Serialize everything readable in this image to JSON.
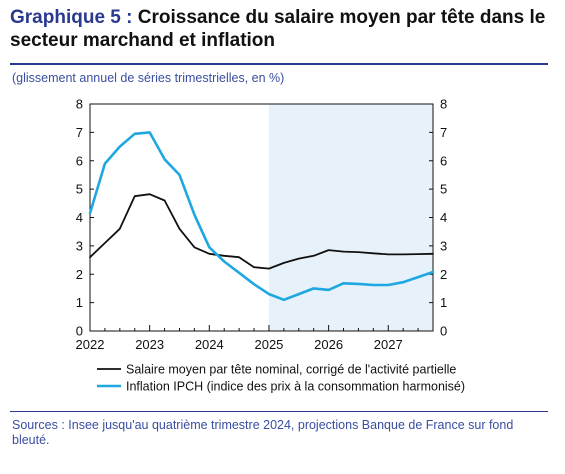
{
  "header": {
    "label": "Graphique 5 :",
    "title": "Croissance du salaire moyen par tête dans le secteur marchand et inflation",
    "subtitle": "(glissement annuel de séries trimestrielles, en %)"
  },
  "footer": {
    "sources": "Sources : Insee jusqu'au quatrième trimestre 2024, projections Banque de France sur fond bleuté."
  },
  "colors": {
    "title_accent": "#2a3990",
    "series_wage": "#111111",
    "series_inflation": "#1ea7e0",
    "projection_band": "#e6f1f9"
  },
  "chart_data": {
    "type": "line",
    "x_ticks": [
      "2022",
      "2023",
      "2024",
      "2025",
      "2026",
      "2027"
    ],
    "x_range": [
      "2022Q1",
      "2027Q4"
    ],
    "ylim": [
      0,
      8
    ],
    "y_ticks": [
      0,
      1,
      2,
      3,
      4,
      5,
      6,
      7,
      8
    ],
    "y_axis_right_mirrored": true,
    "projection_shaded_from": "2025Q1",
    "grid": false,
    "legend_position": "bottom",
    "series": [
      {
        "name": "Salaire moyen par tête nominal, corrigé de l'activité partielle",
        "color": "#111111",
        "points": [
          [
            "2022Q1",
            2.6
          ],
          [
            "2022Q2",
            3.1
          ],
          [
            "2022Q3",
            3.6
          ],
          [
            "2022Q4",
            4.75
          ],
          [
            "2023Q1",
            4.82
          ],
          [
            "2023Q2",
            4.6
          ],
          [
            "2023Q3",
            3.6
          ],
          [
            "2023Q4",
            2.95
          ],
          [
            "2024Q1",
            2.72
          ],
          [
            "2024Q2",
            2.65
          ],
          [
            "2024Q3",
            2.6
          ],
          [
            "2024Q4",
            2.25
          ],
          [
            "2025Q1",
            2.2
          ],
          [
            "2025Q2",
            2.4
          ],
          [
            "2025Q3",
            2.55
          ],
          [
            "2025Q4",
            2.65
          ],
          [
            "2026Q1",
            2.85
          ],
          [
            "2026Q2",
            2.8
          ],
          [
            "2026Q3",
            2.78
          ],
          [
            "2026Q4",
            2.74
          ],
          [
            "2027Q1",
            2.7
          ],
          [
            "2027Q2",
            2.7
          ],
          [
            "2027Q3",
            2.71
          ],
          [
            "2027Q4",
            2.72
          ]
        ]
      },
      {
        "name": "Inflation IPCH (indice des prix à la consommation harmonisé)",
        "color": "#1ea7e0",
        "points": [
          [
            "2022Q1",
            4.15
          ],
          [
            "2022Q2",
            5.9
          ],
          [
            "2022Q3",
            6.5
          ],
          [
            "2022Q4",
            6.95
          ],
          [
            "2023Q1",
            7.0
          ],
          [
            "2023Q2",
            6.05
          ],
          [
            "2023Q3",
            5.5
          ],
          [
            "2023Q4",
            4.1
          ],
          [
            "2024Q1",
            2.95
          ],
          [
            "2024Q2",
            2.45
          ],
          [
            "2024Q3",
            2.05
          ],
          [
            "2024Q4",
            1.65
          ],
          [
            "2025Q1",
            1.3
          ],
          [
            "2025Q2",
            1.1
          ],
          [
            "2025Q3",
            1.3
          ],
          [
            "2025Q4",
            1.5
          ],
          [
            "2026Q1",
            1.45
          ],
          [
            "2026Q2",
            1.68
          ],
          [
            "2026Q3",
            1.66
          ],
          [
            "2026Q4",
            1.62
          ],
          [
            "2027Q1",
            1.62
          ],
          [
            "2027Q2",
            1.72
          ],
          [
            "2027Q3",
            1.9
          ],
          [
            "2027Q4",
            2.08
          ]
        ]
      }
    ]
  }
}
